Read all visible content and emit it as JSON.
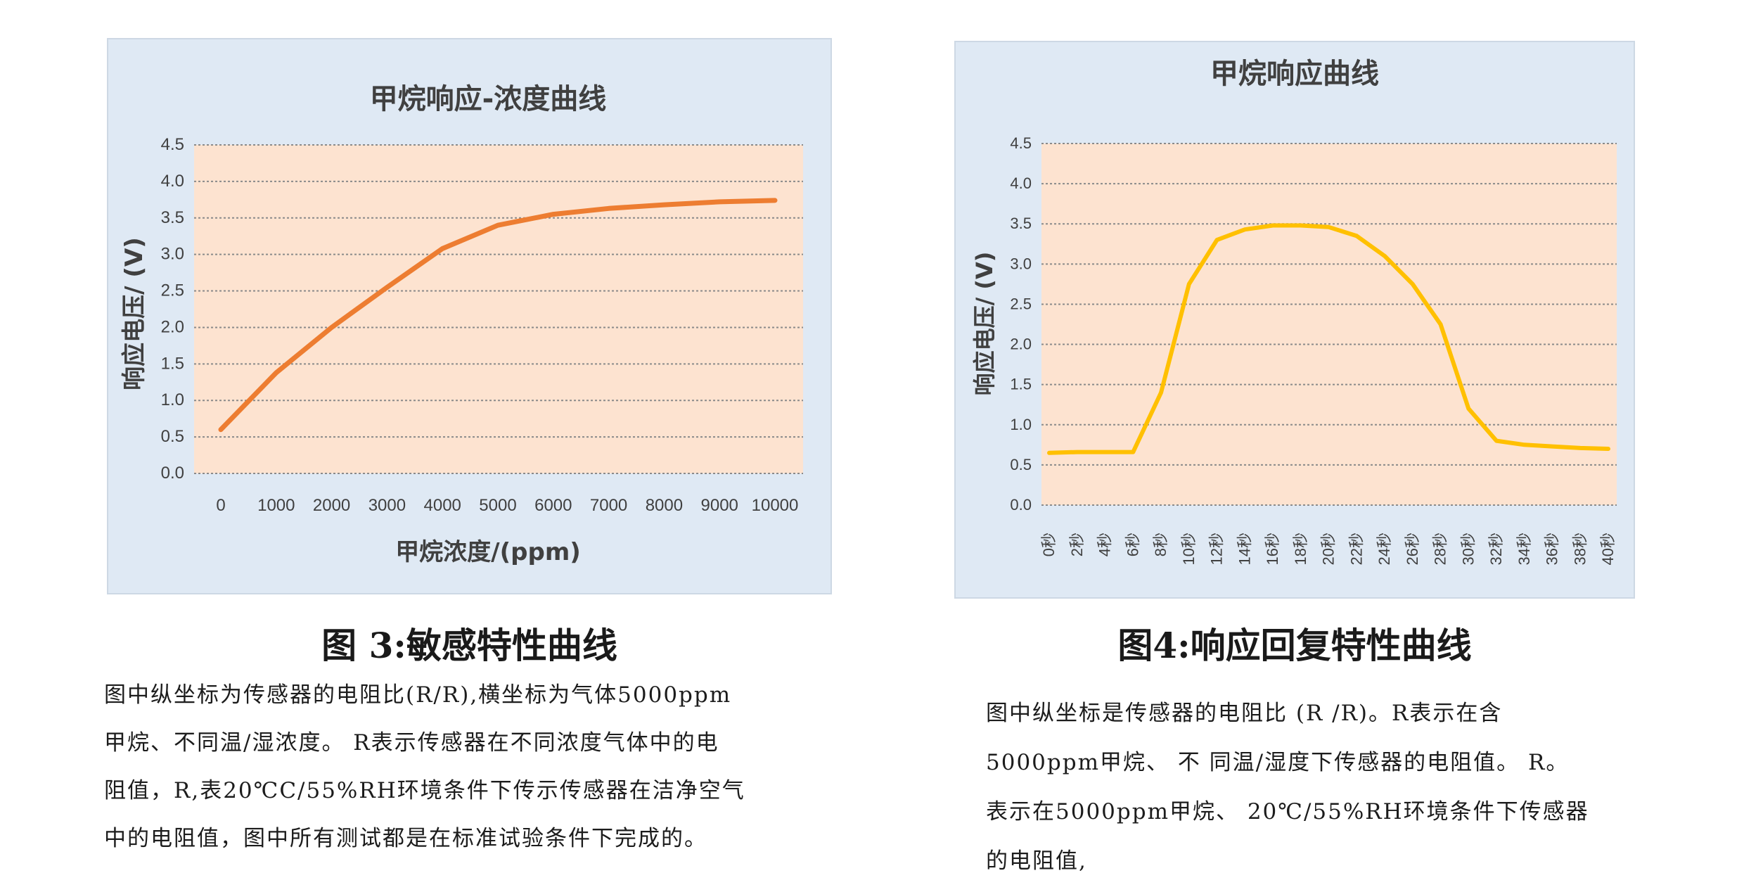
{
  "chart_data": [
    {
      "type": "line",
      "title": "甲烷响应-浓度曲线",
      "xlabel": "甲烷浓度/(ppm)",
      "ylabel": "响应电压/ (V)",
      "categories": [
        "0",
        "1000",
        "2000",
        "3000",
        "4000",
        "5000",
        "6000",
        "7000",
        "8000",
        "9000",
        "10000"
      ],
      "yticks": [
        "0.0",
        "0.5",
        "1.0",
        "1.5",
        "2.0",
        "2.5",
        "3.0",
        "3.5",
        "4.0",
        "4.5"
      ],
      "ylim": [
        0,
        4.5
      ],
      "grid": true,
      "series": [
        {
          "values": [
            0.6,
            1.38,
            2.0,
            2.55,
            3.08,
            3.4,
            3.55,
            3.63,
            3.68,
            3.72,
            3.74
          ]
        }
      ],
      "colors": {
        "line": "#ed7d31",
        "plot_bg": "#fde3d0",
        "panel_bg": "#dfe9f4",
        "grid": "#8a8a8a"
      }
    },
    {
      "type": "line",
      "title": "甲烷响应曲线",
      "xlabel": "",
      "ylabel": "响应电压/ (V)",
      "categories": [
        "0秒",
        "2秒",
        "4秒",
        "6秒",
        "8秒",
        "10秒",
        "12秒",
        "14秒",
        "16秒",
        "18秒",
        "20秒",
        "22秒",
        "24秒",
        "26秒",
        "28秒",
        "30秒",
        "32秒",
        "34秒",
        "36秒",
        "38秒",
        "40秒"
      ],
      "yticks": [
        "0.0",
        "0.5",
        "1.0",
        "1.5",
        "2.0",
        "2.5",
        "3.0",
        "3.5",
        "4.0",
        "4.5"
      ],
      "ylim": [
        0,
        4.5
      ],
      "grid": true,
      "series": [
        {
          "values": [
            0.65,
            0.66,
            0.66,
            0.66,
            1.4,
            2.75,
            3.3,
            3.43,
            3.48,
            3.48,
            3.46,
            3.35,
            3.1,
            2.75,
            2.25,
            1.2,
            0.8,
            0.75,
            0.73,
            0.71,
            0.7
          ]
        }
      ],
      "colors": {
        "line": "#ffc000",
        "plot_bg": "#fde3d0",
        "panel_bg": "#dfe9f4",
        "grid": "#8a8a8a"
      }
    }
  ],
  "captions": {
    "fig3": "图 3:敏感特性曲线",
    "fig4": "图4:响应回复特性曲线"
  },
  "paragraph1": [
    "图中纵坐标为传感器的电阻比(R/R),横坐标为气体5000ppm",
    "甲烷、不同温/湿浓度。 R表示传感器在不同浓度气体中的电",
    "阻值，R,表20℃C/55%RH环境条件下传示传感器在洁净空气",
    "中的电阻值，图中所有测试都是在标准试验条件下完成的。"
  ],
  "paragraph2": [
    "图中纵坐标是传感器的电阻比 (R /R)。R表示在含",
    "5000ppm甲烷、 不 同温/湿度下传感器的电阻值。 R。",
    "表示在5000ppm甲烷、 20℃/55%RH环境条件下传感器",
    "的电阻值,"
  ]
}
